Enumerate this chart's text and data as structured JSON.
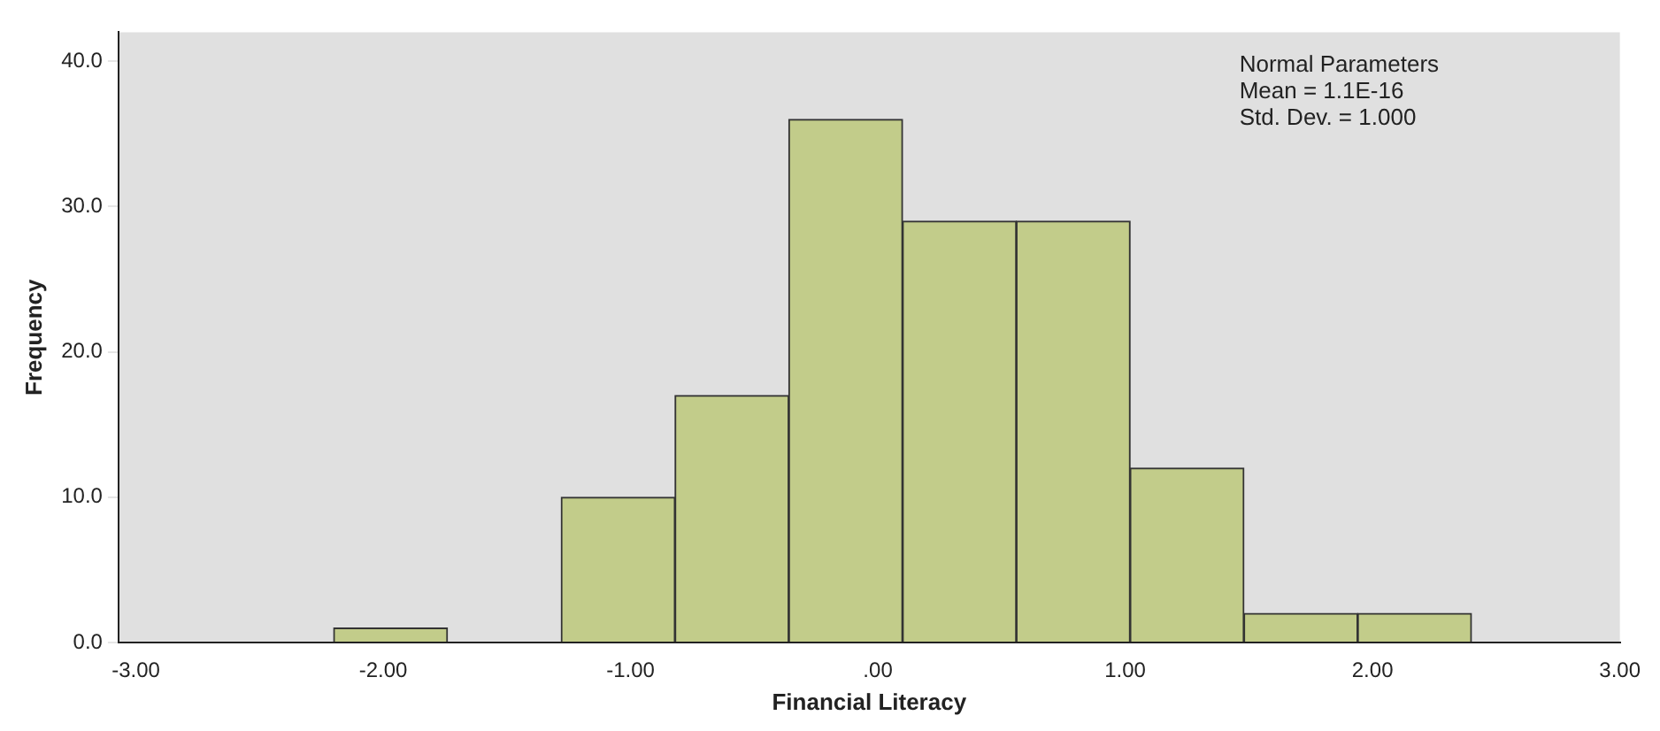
{
  "chart_data": {
    "type": "histogram",
    "xlabel": "Financial Literacy",
    "ylabel": "Frequency",
    "bins": [
      -2.2,
      -1.74,
      -1.28,
      -0.82,
      -0.36,
      0.1,
      0.56,
      1.02,
      1.48,
      1.94,
      2.4
    ],
    "values": [
      1,
      0,
      10,
      17,
      36,
      29,
      29,
      12,
      2,
      2
    ],
    "color": "#c2cc8a",
    "xlim": [
      -3.07,
      3.0
    ],
    "xticks": [
      {
        "value": -3,
        "label": "-3.00"
      },
      {
        "value": -2,
        "label": "-2.00"
      },
      {
        "value": -1,
        "label": "-1.00"
      },
      {
        "value": 0,
        "label": ".00"
      },
      {
        "value": 1,
        "label": "1.00"
      },
      {
        "value": 2,
        "label": "2.00"
      },
      {
        "value": 3,
        "label": "3.00"
      }
    ],
    "ylim": [
      0,
      42
    ],
    "yticks": [
      {
        "value": 0,
        "label": "0.0"
      },
      {
        "value": 10,
        "label": "10.0"
      },
      {
        "value": 20,
        "label": "20.0"
      },
      {
        "value": 30,
        "label": "30.0"
      },
      {
        "value": 40,
        "label": "40.0"
      }
    ],
    "annotations": [
      "Normal Parameters",
      "Mean = 1.1E-16",
      "Std. Dev. = 1.000"
    ],
    "grid": false,
    "legend": false
  }
}
